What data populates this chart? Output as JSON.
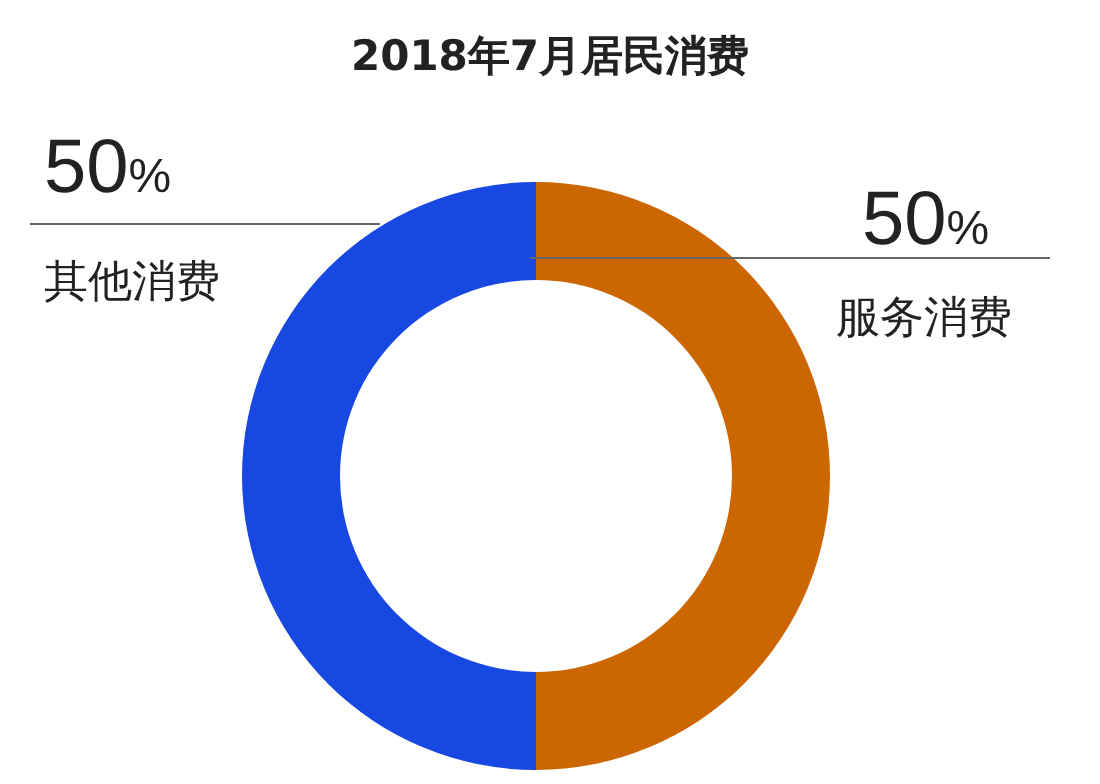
{
  "chart_data": {
    "type": "donut",
    "title": "2018年7月居民消费",
    "categories": [
      "服务消费",
      "其他消费"
    ],
    "values": [
      50,
      50
    ],
    "colors": [
      "#cc6600",
      "#1848e2"
    ],
    "value_labels": [
      "50%",
      "50%"
    ]
  }
}
